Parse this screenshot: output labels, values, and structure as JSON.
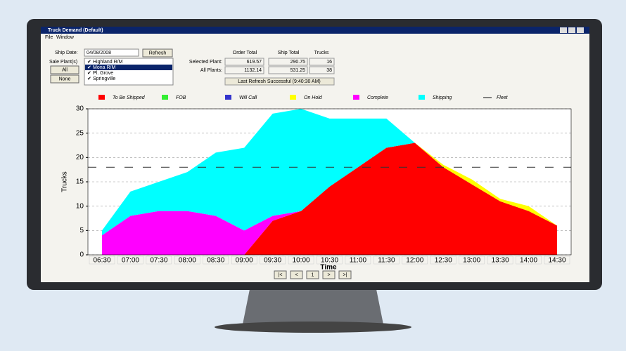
{
  "window": {
    "title": "Truck Demand   (Default)",
    "menu": [
      "File",
      "Window"
    ]
  },
  "controls": {
    "ship_date_label": "Ship Date:",
    "ship_date": "04/08/2008",
    "refresh": "Refresh",
    "sale_plants_label": "Sale Plant(s)",
    "all": "All",
    "none": "None",
    "plants": [
      "Highland R/M",
      "Mona R/M",
      "Pl. Grove",
      "Springville"
    ]
  },
  "totals": {
    "headers": [
      "Order Total",
      "Ship Total",
      "Trucks"
    ],
    "rows": [
      {
        "label": "Selected Plant:",
        "values": [
          "619.57",
          "290.75",
          "16"
        ]
      },
      {
        "label": "All Plants:",
        "values": [
          "1132.14",
          "531.25",
          "38"
        ]
      }
    ],
    "status": "Last Refresh Successful (9:40:30 AM)"
  },
  "chart_data": {
    "type": "area",
    "stacked": true,
    "x_label": "Time",
    "y_label": "Trucks",
    "categories": [
      "06:30",
      "07:00",
      "07:30",
      "08:00",
      "08:30",
      "09:00",
      "09:30",
      "10:00",
      "10:30",
      "11:00",
      "11:30",
      "12:00",
      "12:30",
      "13:00",
      "13:30",
      "14:00",
      "14:30"
    ],
    "series": [
      {
        "name": "To Be Shipped",
        "color": "#ff0000",
        "values": [
          0,
          0,
          0,
          0,
          0,
          0,
          7,
          9,
          14,
          18,
          22,
          23,
          18,
          14.5,
          11,
          9,
          6
        ]
      },
      {
        "name": "FOB",
        "color": "#33ee33",
        "values": [
          0,
          0,
          0,
          0,
          0,
          0,
          0,
          0,
          0,
          0,
          0,
          0,
          0,
          0,
          0,
          0,
          0
        ]
      },
      {
        "name": "Will Call",
        "color": "#3333cc",
        "values": [
          0,
          0,
          0,
          0,
          0,
          0,
          0,
          0,
          0,
          0,
          0,
          0,
          0,
          0,
          0,
          0,
          0
        ]
      },
      {
        "name": "On Hold",
        "color": "#ffff00",
        "values": [
          0,
          0,
          0,
          0,
          0,
          0,
          0,
          0,
          0,
          0,
          0,
          0,
          0.5,
          1,
          0.5,
          1,
          0
        ]
      },
      {
        "name": "Complete",
        "color": "#ff00ff",
        "values": [
          4,
          8,
          9,
          9,
          8,
          5,
          1,
          0,
          0,
          0,
          0,
          0,
          0,
          0,
          0,
          0,
          0
        ]
      },
      {
        "name": "Shipping",
        "color": "#00ffff",
        "values": [
          1,
          5,
          6,
          8,
          13,
          17,
          21,
          21,
          14,
          10,
          6,
          0,
          0,
          0,
          0,
          0,
          0
        ]
      }
    ],
    "fleet": {
      "name": "Fleet",
      "value": 18,
      "color": "#333333"
    },
    "ylim": [
      0,
      30
    ],
    "yticks": [
      0,
      5,
      10,
      15,
      20,
      25,
      30
    ],
    "grid": true
  },
  "pager": [
    "|<",
    "<",
    "1",
    ">",
    ">|"
  ]
}
